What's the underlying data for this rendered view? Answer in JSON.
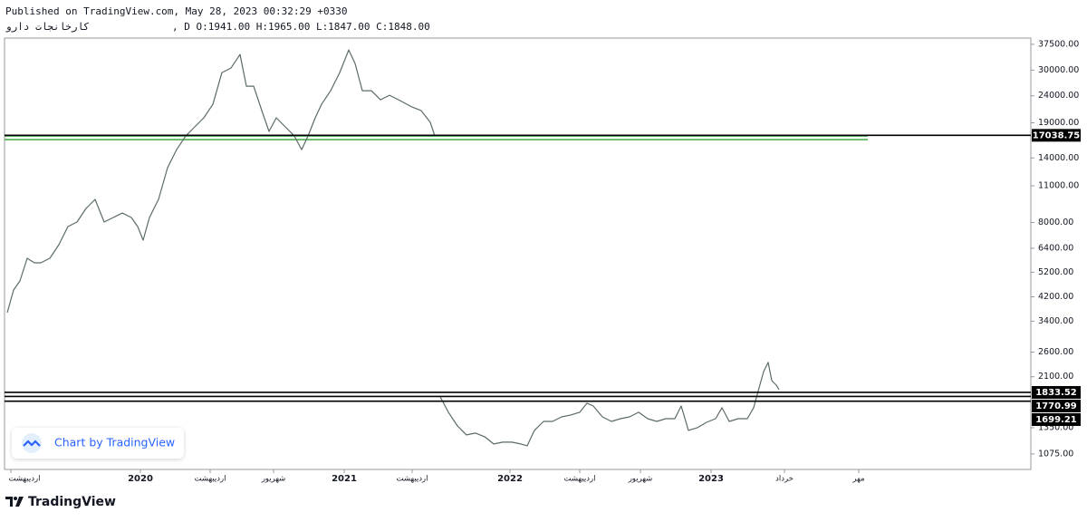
{
  "header": {
    "published": "Published on TradingView.com, May 28, 2023 00:32:29 +0330",
    "symbol": "کارخانجات دارو",
    "ohlc": ", D O:1941.00 H:1965.00 L:1847.00 C:1848.00"
  },
  "chart_data": {
    "type": "line",
    "log_scale": true,
    "color": "#5b6b66",
    "x": [
      3,
      10,
      17,
      25,
      33,
      40,
      50,
      60,
      70,
      80,
      90,
      100,
      110,
      120,
      130,
      140,
      147,
      153,
      160,
      170,
      180,
      190,
      200,
      210,
      220,
      230,
      240,
      250,
      260,
      267,
      275,
      285,
      292,
      300,
      310,
      320,
      328,
      335,
      343,
      350,
      360,
      370,
      380,
      387,
      395,
      405,
      415,
      425,
      435,
      450,
      460,
      470,
      475,
      477,
      481,
      490,
      500,
      510,
      520,
      530,
      540,
      550,
      560,
      570,
      577,
      585,
      595,
      605,
      615,
      625,
      635,
      643,
      650,
      660,
      670,
      680,
      690,
      700,
      710,
      720,
      730,
      740,
      747,
      755,
      765,
      775,
      785,
      792,
      800,
      810,
      820,
      827,
      833,
      838,
      843,
      847,
      852,
      855
    ],
    "values": [
      3661,
      4456,
      4819,
      5866,
      5640,
      5640,
      5866,
      6600,
      7722,
      8030,
      9035,
      9775,
      8030,
      8353,
      8686,
      8353,
      7722,
      6864,
      8353,
      9775,
      12870,
      15050,
      16940,
      18330,
      19830,
      22300,
      29360,
      30530,
      34350,
      26090,
      26090,
      20620,
      17620,
      19830,
      18330,
      16940,
      15050,
      16940,
      19830,
      22300,
      25090,
      29360,
      35720,
      31760,
      25090,
      25090,
      23190,
      24120,
      23190,
      21780,
      21100,
      19060,
      16940,
      null,
      1763,
      1543,
      1371,
      1268,
      1288,
      1248,
      1172,
      1191,
      1191,
      1172,
      1154,
      1319,
      1426,
      1426,
      1483,
      1507,
      1543,
      1669,
      1630,
      1483,
      1426,
      1460,
      1483,
      1543,
      1460,
      1426,
      1460,
      1460,
      1630,
      1319,
      1350,
      1415,
      1460,
      1605,
      1426,
      1460,
      1460,
      1605,
      1908,
      2197,
      2377,
      2031,
      1953,
      1878
    ],
    "xlim": [
      0,
      1133
    ],
    "xticks": [
      {
        "value": 7,
        "label": "اردیبهشت"
      },
      {
        "value": 150,
        "label": "2020"
      },
      {
        "value": 227,
        "label": "اردیبهشت"
      },
      {
        "value": 297,
        "label": "شهریور"
      },
      {
        "value": 375,
        "label": "2021"
      },
      {
        "value": 450,
        "label": "اردیبهشت"
      },
      {
        "value": 558,
        "label": "2022"
      },
      {
        "value": 635,
        "label": "اردیبهشت"
      },
      {
        "value": 702,
        "label": "شهریور"
      },
      {
        "value": 780,
        "label": "2023"
      },
      {
        "value": 861,
        "label": "خرداد"
      },
      {
        "value": 943,
        "label": "مهر"
      }
    ],
    "ylim": [
      940,
      39600
    ],
    "yticks": [
      {
        "value": 37500,
        "label": "37500.00"
      },
      {
        "value": 30000,
        "label": "30000.00"
      },
      {
        "value": 24000,
        "label": "24000.00"
      },
      {
        "value": 19000,
        "label": "19000.00"
      },
      {
        "value": 14000,
        "label": "14000.00"
      },
      {
        "value": 11000,
        "label": "11000.00"
      },
      {
        "value": 8000,
        "label": "8000.00"
      },
      {
        "value": 6400,
        "label": "6400.00"
      },
      {
        "value": 5200,
        "label": "5200.00"
      },
      {
        "value": 4200,
        "label": "4200.00"
      },
      {
        "value": 3400,
        "label": "3400.00"
      },
      {
        "value": 2600,
        "label": "2600.00"
      },
      {
        "value": 2100,
        "label": "2100.00"
      },
      {
        "value": 1350,
        "label": "1350.00"
      },
      {
        "value": 1075,
        "label": "1075.00"
      }
    ],
    "levels": [
      17038.75,
      1833.52,
      1770.99,
      1699.21
    ],
    "level_color": "#000000",
    "zone_values": [
      16940,
      16420
    ],
    "zone_color": "#4caf50",
    "watermark": "Chart by TradingView"
  },
  "footer": {
    "brand": "TradingView"
  }
}
